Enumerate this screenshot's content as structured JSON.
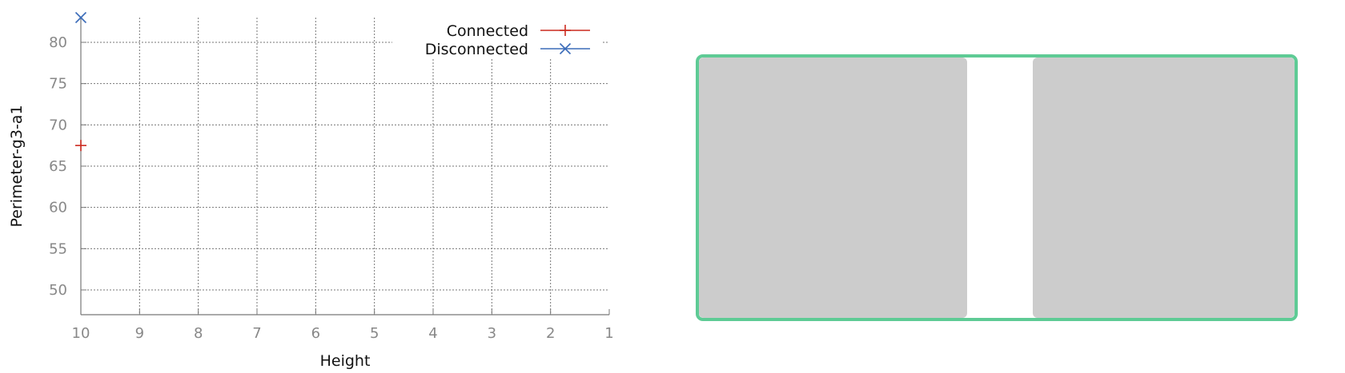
{
  "chart_data": {
    "type": "scatter",
    "xlabel": "Height",
    "ylabel": "Perimeter-g3-a1",
    "xlim": [
      10,
      1
    ],
    "ylim": [
      47,
      83
    ],
    "x_reversed": true,
    "xticks": [
      10,
      9,
      8,
      7,
      6,
      5,
      4,
      3,
      2,
      1
    ],
    "yticks": [
      50,
      55,
      60,
      65,
      70,
      75,
      80
    ],
    "grid": true,
    "legend_position": "top-right",
    "series": [
      {
        "name": "Connected",
        "marker": "plus",
        "color": "#cc2a1f",
        "points": [
          {
            "x": 10,
            "y": 67.5
          }
        ]
      },
      {
        "name": "Disconnected",
        "marker": "x",
        "color": "#3a6bb8",
        "points": [
          {
            "x": 10,
            "y": 83
          }
        ]
      }
    ]
  },
  "panel": {
    "border_color": "#5ecb95",
    "block_color": "#cccccc"
  }
}
